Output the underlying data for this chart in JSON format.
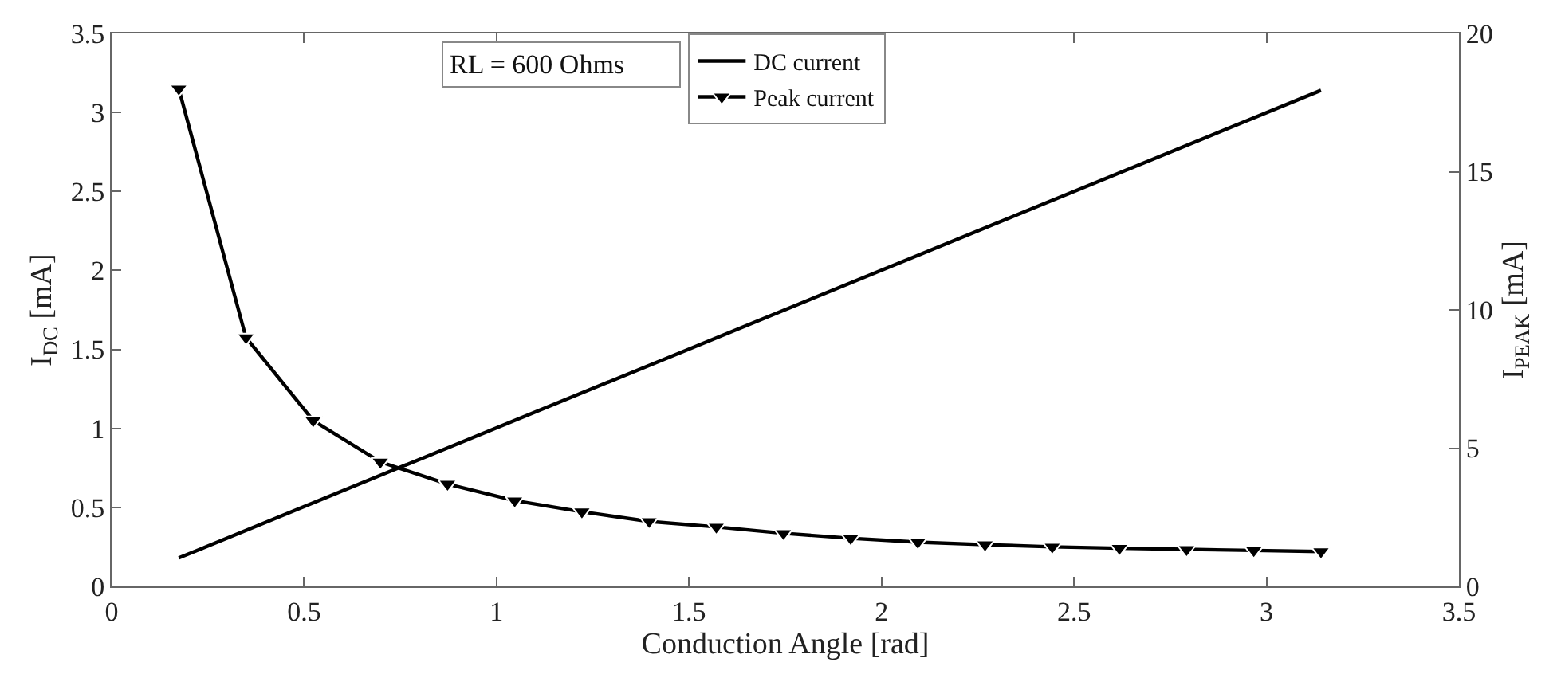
{
  "chart_data": {
    "type": "line",
    "xlabel": "Conduction Angle [rad]",
    "ylabel": "I$_{DC}$ [mA]",
    "y2label": "I$_{PEAK}$ [mA]",
    "xlim": [
      0,
      3.5
    ],
    "xticks": [
      0,
      0.5,
      1,
      1.5,
      2,
      2.5,
      3,
      3.5
    ],
    "ylim": [
      0,
      3.5
    ],
    "yticks": [
      0,
      0.5,
      1,
      1.5,
      2,
      2.5,
      3,
      3.5
    ],
    "y2lim": [
      0,
      20
    ],
    "y2ticks": [
      0,
      5,
      10,
      15,
      20
    ],
    "x": [
      0.1745,
      0.349,
      0.5236,
      0.6981,
      0.8727,
      1.0472,
      1.2217,
      1.3963,
      1.5708,
      1.7453,
      1.9199,
      2.0944,
      2.2689,
      2.4435,
      2.618,
      2.7925,
      2.9671,
      3.1416
    ],
    "series": [
      {
        "name": "DC current",
        "color": "#000000",
        "marker": "none",
        "x": [
          0.1745,
          3.1416
        ],
        "values": [
          0.18,
          3.14
        ]
      },
      {
        "name": "Peak current",
        "color": "#000000",
        "marker": "triangle",
        "axis": "y2",
        "values": [
          18,
          9,
          6,
          4.5,
          3.7,
          3.1,
          2.7,
          2.35,
          2.15,
          1.92,
          1.74,
          1.6,
          1.51,
          1.43,
          1.38,
          1.34,
          1.3,
          1.26
        ]
      }
    ],
    "annotations": [
      "RL = 600 Ohms"
    ],
    "legend": "top",
    "line_style": "solid"
  }
}
